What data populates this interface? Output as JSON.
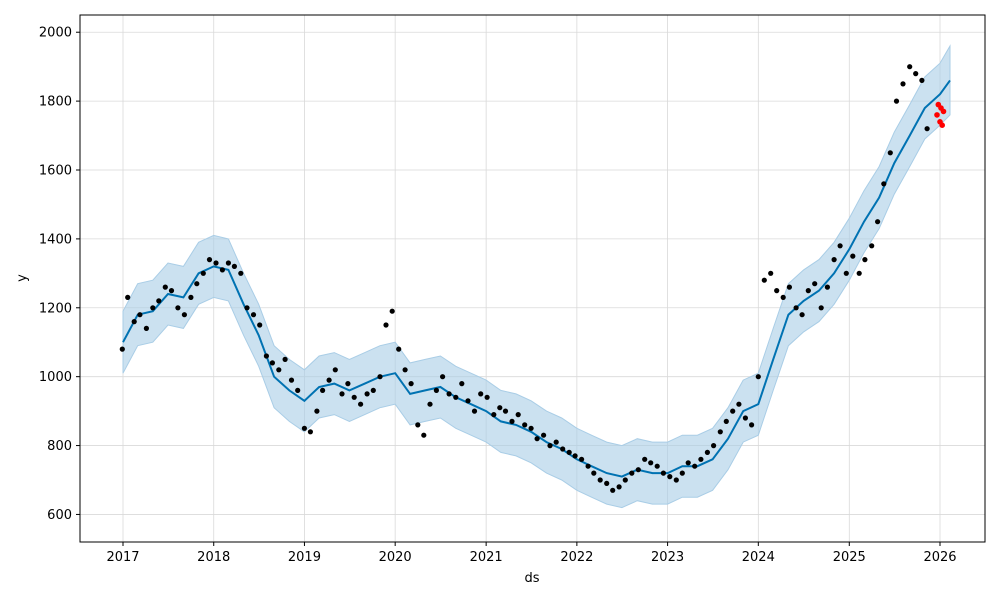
{
  "chart_data": {
    "type": "line",
    "title": "",
    "xlabel": "ds",
    "ylabel": "y",
    "x_ticks": [
      "2017",
      "2018",
      "2019",
      "2020",
      "2021",
      "2022",
      "2023",
      "2024",
      "2025",
      "2026"
    ],
    "y_ticks": [
      600,
      800,
      1000,
      1200,
      1400,
      1600,
      1800,
      2000
    ],
    "xlim": [
      "2016-07-12",
      "2026-07-01"
    ],
    "ylim": [
      520,
      2050
    ],
    "grid": true,
    "legend": "none",
    "colors": {
      "observed": "#000000",
      "forecast": "#0072B2",
      "interval": "#A9CDE6",
      "recent_forecast": "#FF0000"
    },
    "series": [
      {
        "role": "forecast",
        "x": [
          "2017-01-01",
          "2017-03-01",
          "2017-05-01",
          "2017-07-01",
          "2017-09-01",
          "2017-11-01",
          "2018-01-01",
          "2018-03-01",
          "2018-05-01",
          "2018-07-01",
          "2018-09-01",
          "2018-11-01",
          "2019-01-01",
          "2019-03-01",
          "2019-05-01",
          "2019-07-01",
          "2019-09-01",
          "2019-11-01",
          "2020-01-01",
          "2020-03-01",
          "2020-05-01",
          "2020-07-01",
          "2020-09-01",
          "2020-11-01",
          "2021-01-01",
          "2021-03-01",
          "2021-05-01",
          "2021-07-01",
          "2021-09-01",
          "2021-11-01",
          "2022-01-01",
          "2022-03-01",
          "2022-05-01",
          "2022-07-01",
          "2022-09-01",
          "2022-11-01",
          "2023-01-01",
          "2023-03-01",
          "2023-05-01",
          "2023-07-01",
          "2023-09-01",
          "2023-11-01",
          "2024-01-01",
          "2024-03-01",
          "2024-05-01",
          "2024-07-01",
          "2024-09-01",
          "2024-11-01",
          "2025-01-01",
          "2025-03-01",
          "2025-05-01",
          "2025-07-01",
          "2025-09-01",
          "2025-11-01",
          "2026-01-01",
          "2026-02-10"
        ],
        "y": [
          1100,
          1180,
          1190,
          1240,
          1230,
          1300,
          1320,
          1310,
          1210,
          1120,
          1000,
          960,
          930,
          970,
          980,
          960,
          980,
          1000,
          1010,
          950,
          960,
          970,
          940,
          920,
          900,
          870,
          860,
          840,
          810,
          790,
          760,
          740,
          720,
          710,
          730,
          720,
          720,
          740,
          740,
          760,
          820,
          900,
          920,
          1050,
          1180,
          1220,
          1250,
          1300,
          1370,
          1450,
          1520,
          1620,
          1700,
          1780,
          1820,
          1860
        ]
      },
      {
        "role": "interval-upper",
        "x": [
          "2017-01-01",
          "2017-03-01",
          "2017-05-01",
          "2017-07-01",
          "2017-09-01",
          "2017-11-01",
          "2018-01-01",
          "2018-03-01",
          "2018-05-01",
          "2018-07-01",
          "2018-09-01",
          "2018-11-01",
          "2019-01-01",
          "2019-03-01",
          "2019-05-01",
          "2019-07-01",
          "2019-09-01",
          "2019-11-01",
          "2020-01-01",
          "2020-03-01",
          "2020-05-01",
          "2020-07-01",
          "2020-09-01",
          "2020-11-01",
          "2021-01-01",
          "2021-03-01",
          "2021-05-01",
          "2021-07-01",
          "2021-09-01",
          "2021-11-01",
          "2022-01-01",
          "2022-03-01",
          "2022-05-01",
          "2022-07-01",
          "2022-09-01",
          "2022-11-01",
          "2023-01-01",
          "2023-03-01",
          "2023-05-01",
          "2023-07-01",
          "2023-09-01",
          "2023-11-01",
          "2024-01-01",
          "2024-03-01",
          "2024-05-01",
          "2024-07-01",
          "2024-09-01",
          "2024-11-01",
          "2025-01-01",
          "2025-03-01",
          "2025-05-01",
          "2025-07-01",
          "2025-09-01",
          "2025-11-01",
          "2026-01-01",
          "2026-02-10"
        ],
        "y": [
          1190,
          1270,
          1280,
          1330,
          1320,
          1390,
          1410,
          1400,
          1300,
          1210,
          1090,
          1050,
          1020,
          1060,
          1070,
          1050,
          1070,
          1090,
          1100,
          1040,
          1050,
          1060,
          1030,
          1010,
          990,
          960,
          950,
          930,
          900,
          880,
          850,
          830,
          810,
          800,
          820,
          810,
          810,
          830,
          830,
          850,
          910,
          990,
          1010,
          1140,
          1270,
          1310,
          1340,
          1390,
          1460,
          1540,
          1610,
          1710,
          1790,
          1870,
          1910,
          1960
        ]
      },
      {
        "role": "interval-lower",
        "x": [
          "2017-01-01",
          "2017-03-01",
          "2017-05-01",
          "2017-07-01",
          "2017-09-01",
          "2017-11-01",
          "2018-01-01",
          "2018-03-01",
          "2018-05-01",
          "2018-07-01",
          "2018-09-01",
          "2018-11-01",
          "2019-01-01",
          "2019-03-01",
          "2019-05-01",
          "2019-07-01",
          "2019-09-01",
          "2019-11-01",
          "2020-01-01",
          "2020-03-01",
          "2020-05-01",
          "2020-07-01",
          "2020-09-01",
          "2020-11-01",
          "2021-01-01",
          "2021-03-01",
          "2021-05-01",
          "2021-07-01",
          "2021-09-01",
          "2021-11-01",
          "2022-01-01",
          "2022-03-01",
          "2022-05-01",
          "2022-07-01",
          "2022-09-01",
          "2022-11-01",
          "2023-01-01",
          "2023-03-01",
          "2023-05-01",
          "2023-07-01",
          "2023-09-01",
          "2023-11-01",
          "2024-01-01",
          "2024-03-01",
          "2024-05-01",
          "2024-07-01",
          "2024-09-01",
          "2024-11-01",
          "2025-01-01",
          "2025-03-01",
          "2025-05-01",
          "2025-07-01",
          "2025-09-01",
          "2025-11-01",
          "2026-01-01",
          "2026-02-10"
        ],
        "y": [
          1010,
          1090,
          1100,
          1150,
          1140,
          1210,
          1230,
          1220,
          1120,
          1030,
          910,
          870,
          840,
          880,
          890,
          870,
          890,
          910,
          920,
          860,
          870,
          880,
          850,
          830,
          810,
          780,
          770,
          750,
          720,
          700,
          670,
          650,
          630,
          620,
          640,
          630,
          630,
          650,
          650,
          670,
          730,
          810,
          830,
          960,
          1090,
          1130,
          1160,
          1210,
          1280,
          1360,
          1430,
          1530,
          1610,
          1690,
          1730,
          1760
        ]
      },
      {
        "role": "observed",
        "x": [
          "2016-12-29",
          "2017-01-20",
          "2017-02-15",
          "2017-03-10",
          "2017-04-05",
          "2017-05-01",
          "2017-05-25",
          "2017-06-20",
          "2017-07-15",
          "2017-08-10",
          "2017-09-05",
          "2017-10-01",
          "2017-10-25",
          "2017-11-20",
          "2017-12-15",
          "2018-01-10",
          "2018-02-05",
          "2018-03-01",
          "2018-03-25",
          "2018-04-20",
          "2018-05-15",
          "2018-06-10",
          "2018-07-05",
          "2018-08-01",
          "2018-08-25",
          "2018-09-20",
          "2018-10-15",
          "2018-11-10",
          "2018-12-05",
          "2019-01-01",
          "2019-01-25",
          "2019-02-20",
          "2019-03-15",
          "2019-04-10",
          "2019-05-05",
          "2019-06-01",
          "2019-06-25",
          "2019-07-20",
          "2019-08-15",
          "2019-09-10",
          "2019-10-05",
          "2019-11-01",
          "2019-11-25",
          "2019-12-20",
          "2020-01-15",
          "2020-02-10",
          "2020-03-05",
          "2020-04-01",
          "2020-04-25",
          "2020-05-20",
          "2020-06-15",
          "2020-07-10",
          "2020-08-05",
          "2020-09-01",
          "2020-09-25",
          "2020-10-20",
          "2020-11-15",
          "2020-12-10",
          "2021-01-05",
          "2021-02-01",
          "2021-02-25",
          "2021-03-20",
          "2021-04-15",
          "2021-05-10",
          "2021-06-05",
          "2021-07-01",
          "2021-07-25",
          "2021-08-20",
          "2021-09-15",
          "2021-10-10",
          "2021-11-05",
          "2021-12-01",
          "2021-12-25",
          "2022-01-20",
          "2022-02-15",
          "2022-03-10",
          "2022-04-05",
          "2022-05-01",
          "2022-05-25",
          "2022-06-20",
          "2022-07-15",
          "2022-08-10",
          "2022-09-05",
          "2022-10-01",
          "2022-10-25",
          "2022-11-20",
          "2022-12-15",
          "2023-01-10",
          "2023-02-05",
          "2023-03-01",
          "2023-03-25",
          "2023-04-20",
          "2023-05-15",
          "2023-06-10",
          "2023-07-05",
          "2023-08-01",
          "2023-08-25",
          "2023-09-20",
          "2023-10-15",
          "2023-11-10",
          "2023-12-05",
          "2024-01-01",
          "2024-01-25",
          "2024-02-20",
          "2024-03-15",
          "2024-04-10",
          "2024-05-05",
          "2024-06-01",
          "2024-06-25",
          "2024-07-20",
          "2024-08-15",
          "2024-09-10",
          "2024-10-05",
          "2024-11-01",
          "2024-11-25",
          "2024-12-20",
          "2025-01-15",
          "2025-02-10",
          "2025-03-05",
          "2025-04-01",
          "2025-04-25",
          "2025-05-20",
          "2025-06-15",
          "2025-07-10",
          "2025-08-05",
          "2025-09-01",
          "2025-09-25",
          "2025-10-20",
          "2025-11-10"
        ],
        "y": [
          1080,
          1230,
          1160,
          1180,
          1140,
          1200,
          1220,
          1260,
          1250,
          1200,
          1180,
          1230,
          1270,
          1300,
          1340,
          1330,
          1310,
          1330,
          1320,
          1300,
          1200,
          1180,
          1150,
          1060,
          1040,
          1020,
          1050,
          990,
          960,
          850,
          840,
          900,
          960,
          990,
          1020,
          950,
          980,
          940,
          920,
          950,
          960,
          1000,
          1150,
          1190,
          1080,
          1020,
          980,
          860,
          830,
          920,
          960,
          1000,
          950,
          940,
          980,
          930,
          900,
          950,
          940,
          890,
          910,
          900,
          870,
          890,
          860,
          850,
          820,
          830,
          800,
          810,
          790,
          780,
          770,
          760,
          740,
          720,
          700,
          690,
          670,
          680,
          700,
          720,
          730,
          760,
          750,
          740,
          720,
          710,
          700,
          720,
          750,
          740,
          760,
          780,
          800,
          840,
          870,
          900,
          920,
          880,
          860,
          1000,
          1280,
          1300,
          1250,
          1230,
          1260,
          1200,
          1180,
          1250,
          1270,
          1200,
          1260,
          1340,
          1380,
          1300,
          1350,
          1300,
          1340,
          1380,
          1450,
          1560,
          1650,
          1800,
          1850,
          1900,
          1880,
          1860,
          1720
        ]
      },
      {
        "role": "recent-forecast",
        "x": [
          "2025-12-20",
          "2025-12-25",
          "2026-01-01",
          "2026-01-05",
          "2026-01-10",
          "2026-01-15"
        ],
        "y": [
          1760,
          1790,
          1740,
          1780,
          1730,
          1770
        ]
      }
    ]
  }
}
